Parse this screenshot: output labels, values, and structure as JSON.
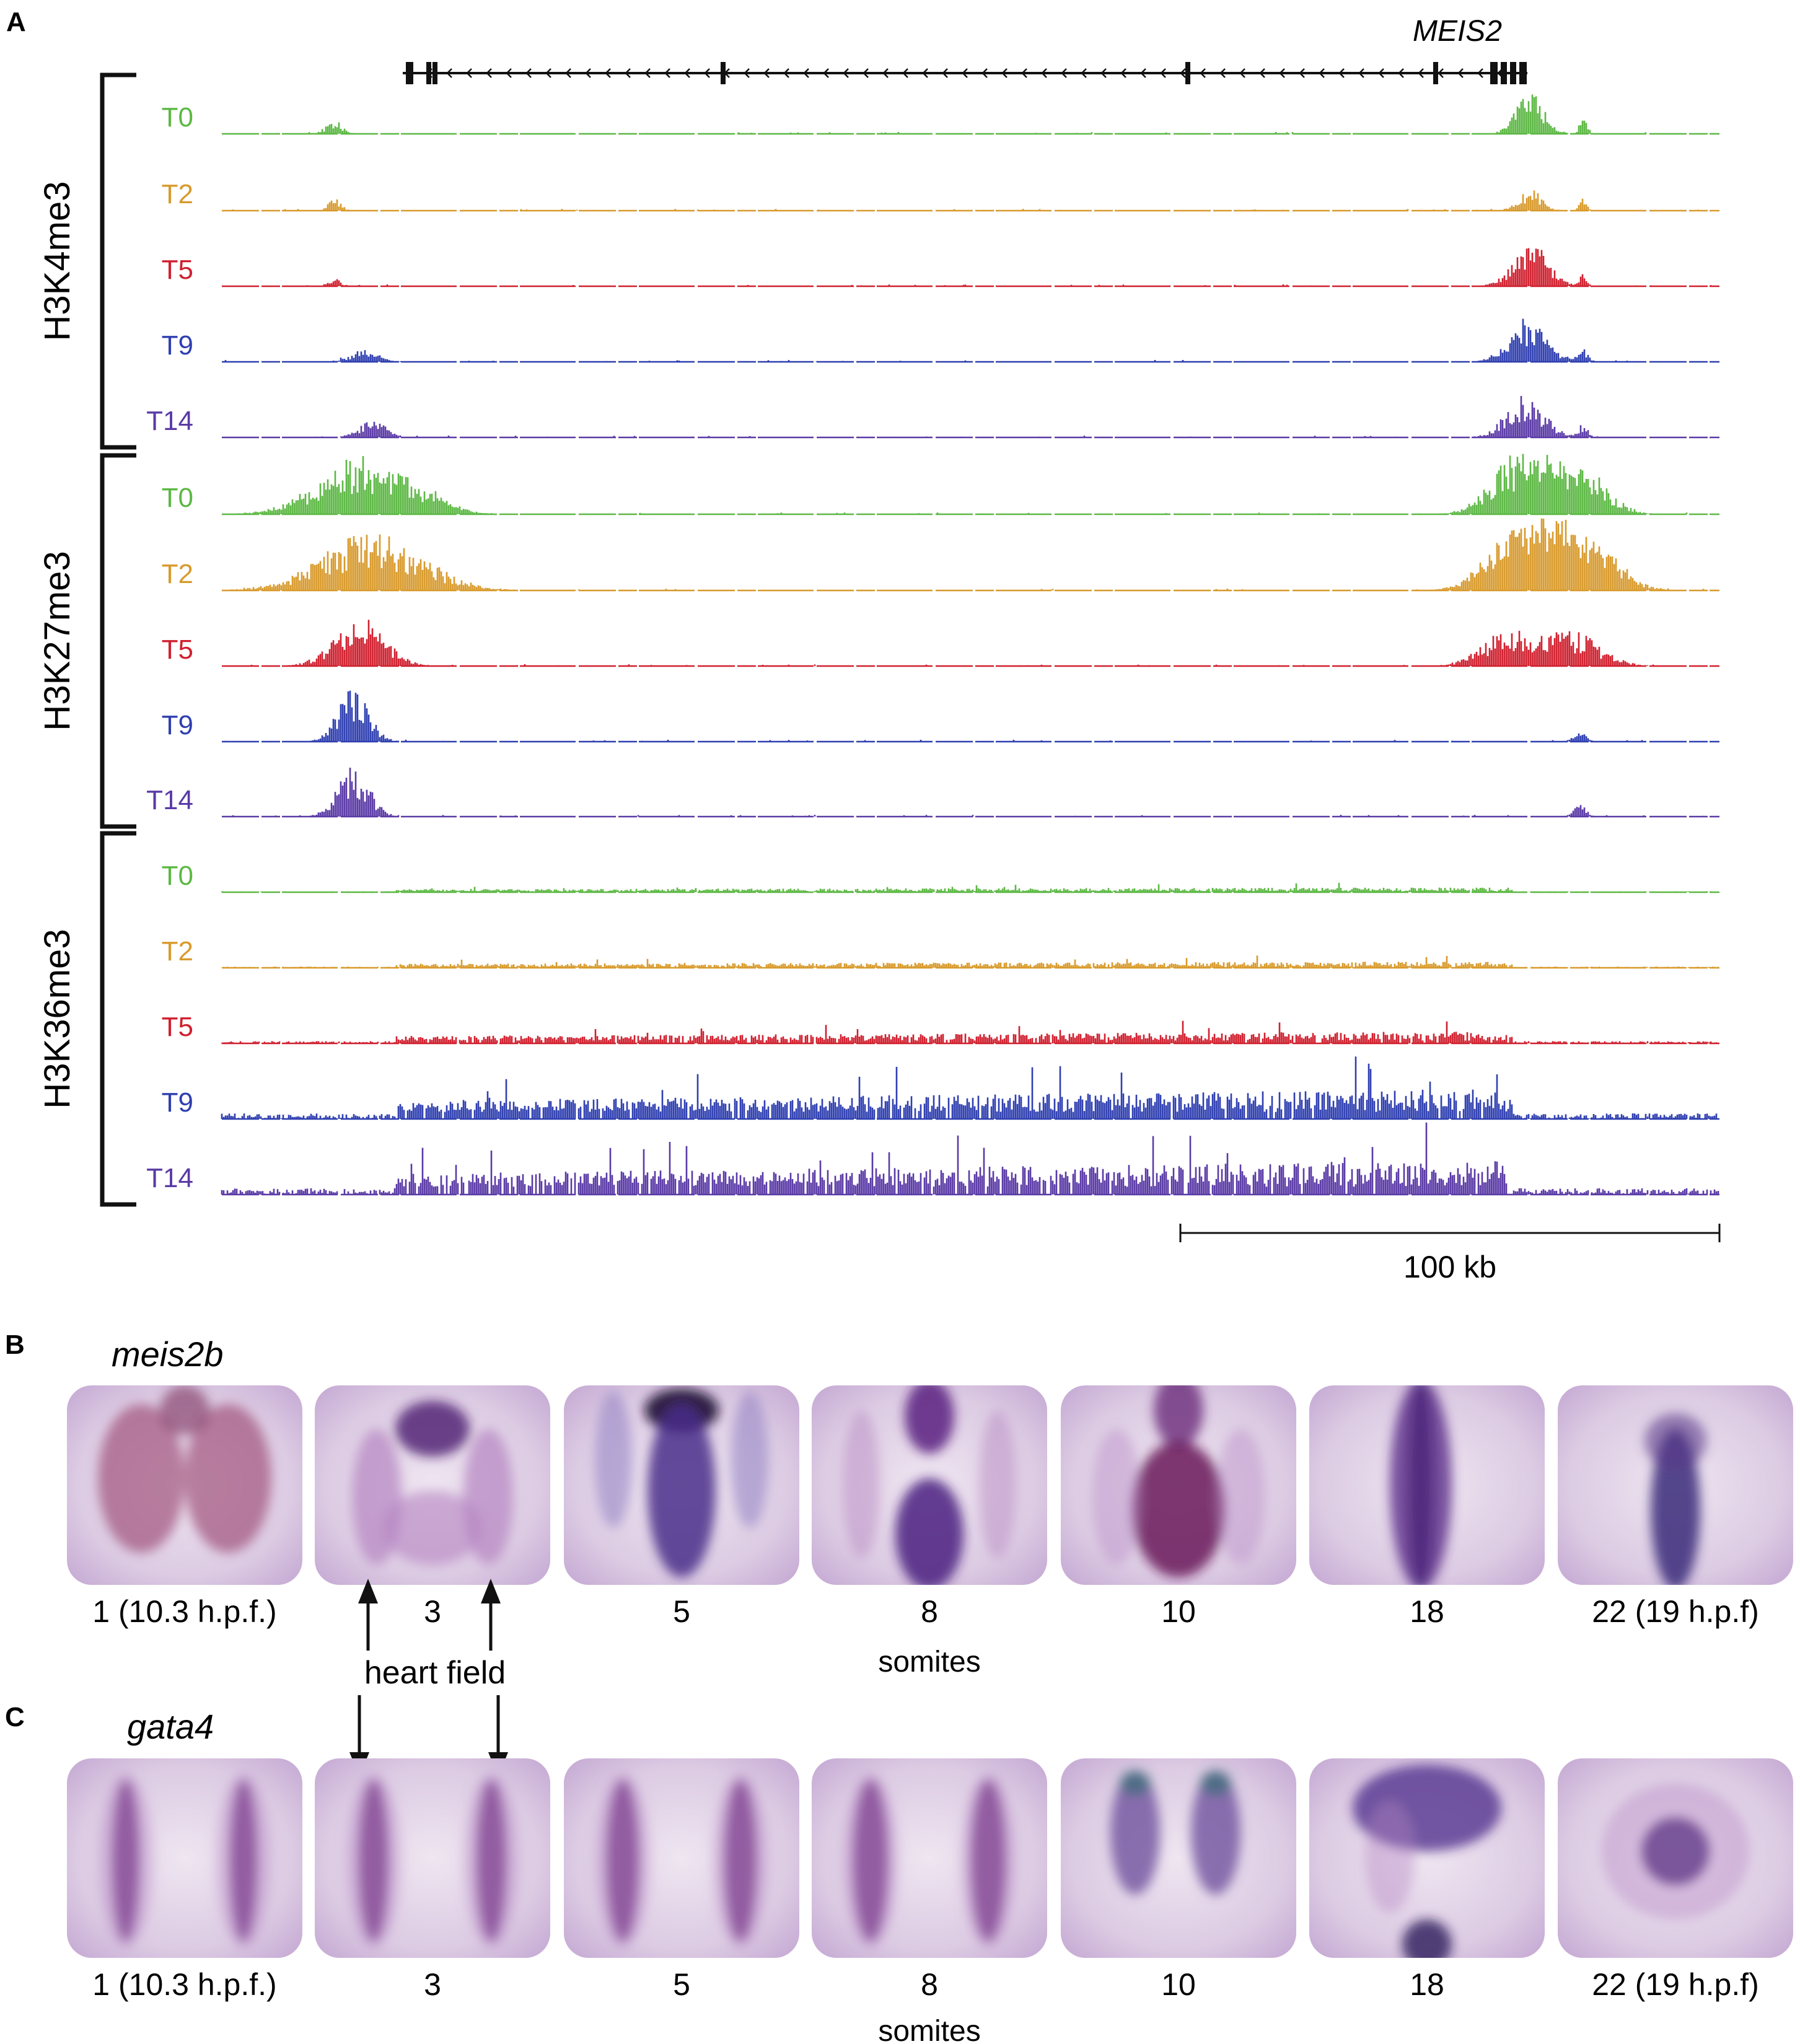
{
  "panel_a": {
    "letter": "A",
    "gene_label": "MEIS2",
    "groups": [
      {
        "label": "H3K4me3",
        "tracks": [
          {
            "time": "T0",
            "color": "#5cb844"
          },
          {
            "time": "T2",
            "color": "#d89a2c"
          },
          {
            "time": "T5",
            "color": "#d0202f"
          },
          {
            "time": "T9",
            "color": "#2f3fb0"
          },
          {
            "time": "T14",
            "color": "#5a3aa6"
          }
        ]
      },
      {
        "label": "H3K27me3",
        "tracks": [
          {
            "time": "T0",
            "color": "#5cb844"
          },
          {
            "time": "T2",
            "color": "#d89a2c"
          },
          {
            "time": "T5",
            "color": "#d0202f"
          },
          {
            "time": "T9",
            "color": "#2f3fb0"
          },
          {
            "time": "T14",
            "color": "#5a3aa6"
          }
        ]
      },
      {
        "label": "H3K36me3",
        "tracks": [
          {
            "time": "T0",
            "color": "#5cb844"
          },
          {
            "time": "T2",
            "color": "#d89a2c"
          },
          {
            "time": "T5",
            "color": "#d0202f"
          },
          {
            "time": "T9",
            "color": "#2f3fb0"
          },
          {
            "time": "T14",
            "color": "#5a3aa6"
          }
        ]
      }
    ],
    "scale_bar_label": "100 kb"
  },
  "panel_b": {
    "letter": "B",
    "gene": "meis2b",
    "stage_labels": [
      "1 (10.3 h.p.f.)",
      "3",
      "5",
      "8",
      "10",
      "18",
      "22 (19 h.p.f)"
    ],
    "somites_label": "somites"
  },
  "panel_c": {
    "letter": "C",
    "gene": "gata4",
    "stage_labels": [
      "1 (10.3 h.p.f.)",
      "3",
      "5",
      "8",
      "10",
      "18",
      "22 (19 h.p.f)"
    ],
    "somites_label": "somites"
  },
  "annotation": {
    "heart_field_label": "heart field"
  },
  "colors": {
    "embryo_bg": "#ece2ee",
    "stain_light": "#b584c2",
    "stain_dark": "#4a1d6e"
  }
}
